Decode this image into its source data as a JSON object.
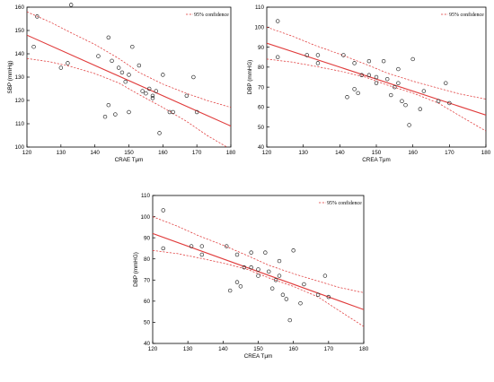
{
  "chart_data": [
    {
      "type": "scatter",
      "xlabel": "CRAE Tμm",
      "ylabel": "SBP (mmHg)",
      "xlim": [
        120,
        180
      ],
      "ylim": [
        100,
        160
      ],
      "x_ticks": [
        "120",
        "130",
        "140",
        "150",
        "160",
        "170",
        "180"
      ],
      "y_ticks": [
        "100",
        "110",
        "120",
        "130",
        "140",
        "150",
        "160"
      ],
      "legend": "95% confidence",
      "legend_position": "top-right",
      "grid": false,
      "fit_line": {
        "x": [
          120,
          180
        ],
        "y": [
          148,
          109
        ]
      },
      "ci_upper": {
        "x": [
          120,
          127,
          133,
          140,
          147,
          153,
          160,
          167,
          173,
          180
        ],
        "y": [
          158,
          153.5,
          149,
          144,
          138,
          132,
          127,
          123,
          120,
          117
        ]
      },
      "ci_lower": {
        "x": [
          120,
          127,
          133,
          140,
          147,
          153,
          160,
          167,
          173,
          180
        ],
        "y": [
          138,
          136.5,
          134.5,
          131.5,
          127.5,
          122.5,
          117,
          111,
          105,
          99
        ]
      },
      "points": [
        {
          "x": 122,
          "y": 143
        },
        {
          "x": 123,
          "y": 156
        },
        {
          "x": 130,
          "y": 134
        },
        {
          "x": 132,
          "y": 136
        },
        {
          "x": 133,
          "y": 161
        },
        {
          "x": 141,
          "y": 139
        },
        {
          "x": 143,
          "y": 113
        },
        {
          "x": 144,
          "y": 118
        },
        {
          "x": 144,
          "y": 147
        },
        {
          "x": 145,
          "y": 137
        },
        {
          "x": 146,
          "y": 114
        },
        {
          "x": 147,
          "y": 134
        },
        {
          "x": 148,
          "y": 132
        },
        {
          "x": 149,
          "y": 128
        },
        {
          "x": 150,
          "y": 115
        },
        {
          "x": 150,
          "y": 131
        },
        {
          "x": 151,
          "y": 143
        },
        {
          "x": 153,
          "y": 135
        },
        {
          "x": 154,
          "y": 124
        },
        {
          "x": 155,
          "y": 123
        },
        {
          "x": 156,
          "y": 125
        },
        {
          "x": 157,
          "y": 122
        },
        {
          "x": 157,
          "y": 121
        },
        {
          "x": 158,
          "y": 124
        },
        {
          "x": 159,
          "y": 106
        },
        {
          "x": 160,
          "y": 131
        },
        {
          "x": 162,
          "y": 115
        },
        {
          "x": 163,
          "y": 115
        },
        {
          "x": 167,
          "y": 122
        },
        {
          "x": 169,
          "y": 130
        },
        {
          "x": 170,
          "y": 115
        }
      ]
    },
    {
      "type": "scatter",
      "xlabel": "CREA Tμm",
      "ylabel": "DBP (mmHG)",
      "xlim": [
        120,
        180
      ],
      "ylim": [
        40,
        110
      ],
      "x_ticks": [
        "120",
        "130",
        "140",
        "150",
        "160",
        "170",
        "180"
      ],
      "y_ticks": [
        "40",
        "50",
        "60",
        "70",
        "80",
        "90",
        "100",
        "110"
      ],
      "legend": "95% confidence",
      "legend_position": "top-right",
      "grid": false,
      "fit_line": {
        "x": [
          120,
          180
        ],
        "y": [
          92,
          56
        ]
      },
      "ci_upper": {
        "x": [
          120,
          127,
          133,
          140,
          147,
          153,
          160,
          167,
          173,
          180
        ],
        "y": [
          100,
          95.5,
          91,
          86.5,
          81.5,
          77,
          73,
          69.5,
          66.5,
          64
        ]
      },
      "ci_lower": {
        "x": [
          120,
          127,
          133,
          140,
          147,
          153,
          160,
          167,
          173,
          180
        ],
        "y": [
          84,
          82.5,
          80.5,
          78,
          75,
          71,
          67,
          62,
          55.5,
          48
        ]
      },
      "points": [
        {
          "x": 123,
          "y": 103
        },
        {
          "x": 123,
          "y": 85
        },
        {
          "x": 131,
          "y": 86
        },
        {
          "x": 134,
          "y": 86
        },
        {
          "x": 134,
          "y": 82
        },
        {
          "x": 141,
          "y": 86
        },
        {
          "x": 142,
          "y": 65
        },
        {
          "x": 144,
          "y": 82
        },
        {
          "x": 144,
          "y": 69
        },
        {
          "x": 145,
          "y": 67
        },
        {
          "x": 146,
          "y": 76
        },
        {
          "x": 148,
          "y": 83
        },
        {
          "x": 148,
          "y": 76
        },
        {
          "x": 150,
          "y": 72
        },
        {
          "x": 150,
          "y": 75
        },
        {
          "x": 152,
          "y": 83
        },
        {
          "x": 153,
          "y": 74
        },
        {
          "x": 154,
          "y": 66
        },
        {
          "x": 155,
          "y": 70
        },
        {
          "x": 156,
          "y": 79
        },
        {
          "x": 156,
          "y": 72
        },
        {
          "x": 157,
          "y": 63
        },
        {
          "x": 158,
          "y": 61
        },
        {
          "x": 159,
          "y": 51
        },
        {
          "x": 160,
          "y": 84
        },
        {
          "x": 162,
          "y": 59
        },
        {
          "x": 163,
          "y": 68
        },
        {
          "x": 167,
          "y": 63
        },
        {
          "x": 169,
          "y": 72
        },
        {
          "x": 170,
          "y": 62
        }
      ]
    },
    {
      "type": "scatter",
      "xlabel": "CREA Tμm",
      "ylabel": "DBP (mmHG)",
      "xlim": [
        120,
        180
      ],
      "ylim": [
        40,
        110
      ],
      "x_ticks": [
        "120",
        "130",
        "140",
        "150",
        "160",
        "170",
        "180"
      ],
      "y_ticks": [
        "40",
        "50",
        "60",
        "70",
        "80",
        "90",
        "100",
        "110"
      ],
      "legend": "95% confidence",
      "legend_position": "top-right",
      "grid": false,
      "fit_line": {
        "x": [
          120,
          180
        ],
        "y": [
          92,
          56
        ]
      },
      "ci_upper": {
        "x": [
          120,
          127,
          133,
          140,
          147,
          153,
          160,
          167,
          173,
          180
        ],
        "y": [
          100,
          95.5,
          91,
          86.5,
          81.5,
          77,
          73,
          69.5,
          66.5,
          64
        ]
      },
      "ci_lower": {
        "x": [
          120,
          127,
          133,
          140,
          147,
          153,
          160,
          167,
          173,
          180
        ],
        "y": [
          84,
          82.5,
          80.5,
          78,
          75,
          71,
          67,
          62,
          55.5,
          48
        ]
      },
      "points": [
        {
          "x": 123,
          "y": 103
        },
        {
          "x": 123,
          "y": 85
        },
        {
          "x": 131,
          "y": 86
        },
        {
          "x": 134,
          "y": 86
        },
        {
          "x": 134,
          "y": 82
        },
        {
          "x": 141,
          "y": 86
        },
        {
          "x": 142,
          "y": 65
        },
        {
          "x": 144,
          "y": 82
        },
        {
          "x": 144,
          "y": 69
        },
        {
          "x": 145,
          "y": 67
        },
        {
          "x": 146,
          "y": 76
        },
        {
          "x": 148,
          "y": 83
        },
        {
          "x": 148,
          "y": 76
        },
        {
          "x": 150,
          "y": 72
        },
        {
          "x": 150,
          "y": 75
        },
        {
          "x": 152,
          "y": 83
        },
        {
          "x": 153,
          "y": 74
        },
        {
          "x": 154,
          "y": 66
        },
        {
          "x": 155,
          "y": 70
        },
        {
          "x": 156,
          "y": 79
        },
        {
          "x": 156,
          "y": 72
        },
        {
          "x": 157,
          "y": 63
        },
        {
          "x": 158,
          "y": 61
        },
        {
          "x": 159,
          "y": 51
        },
        {
          "x": 160,
          "y": 84
        },
        {
          "x": 162,
          "y": 59
        },
        {
          "x": 163,
          "y": 68
        },
        {
          "x": 167,
          "y": 63
        },
        {
          "x": 169,
          "y": 72
        },
        {
          "x": 170,
          "y": 62
        }
      ]
    }
  ]
}
